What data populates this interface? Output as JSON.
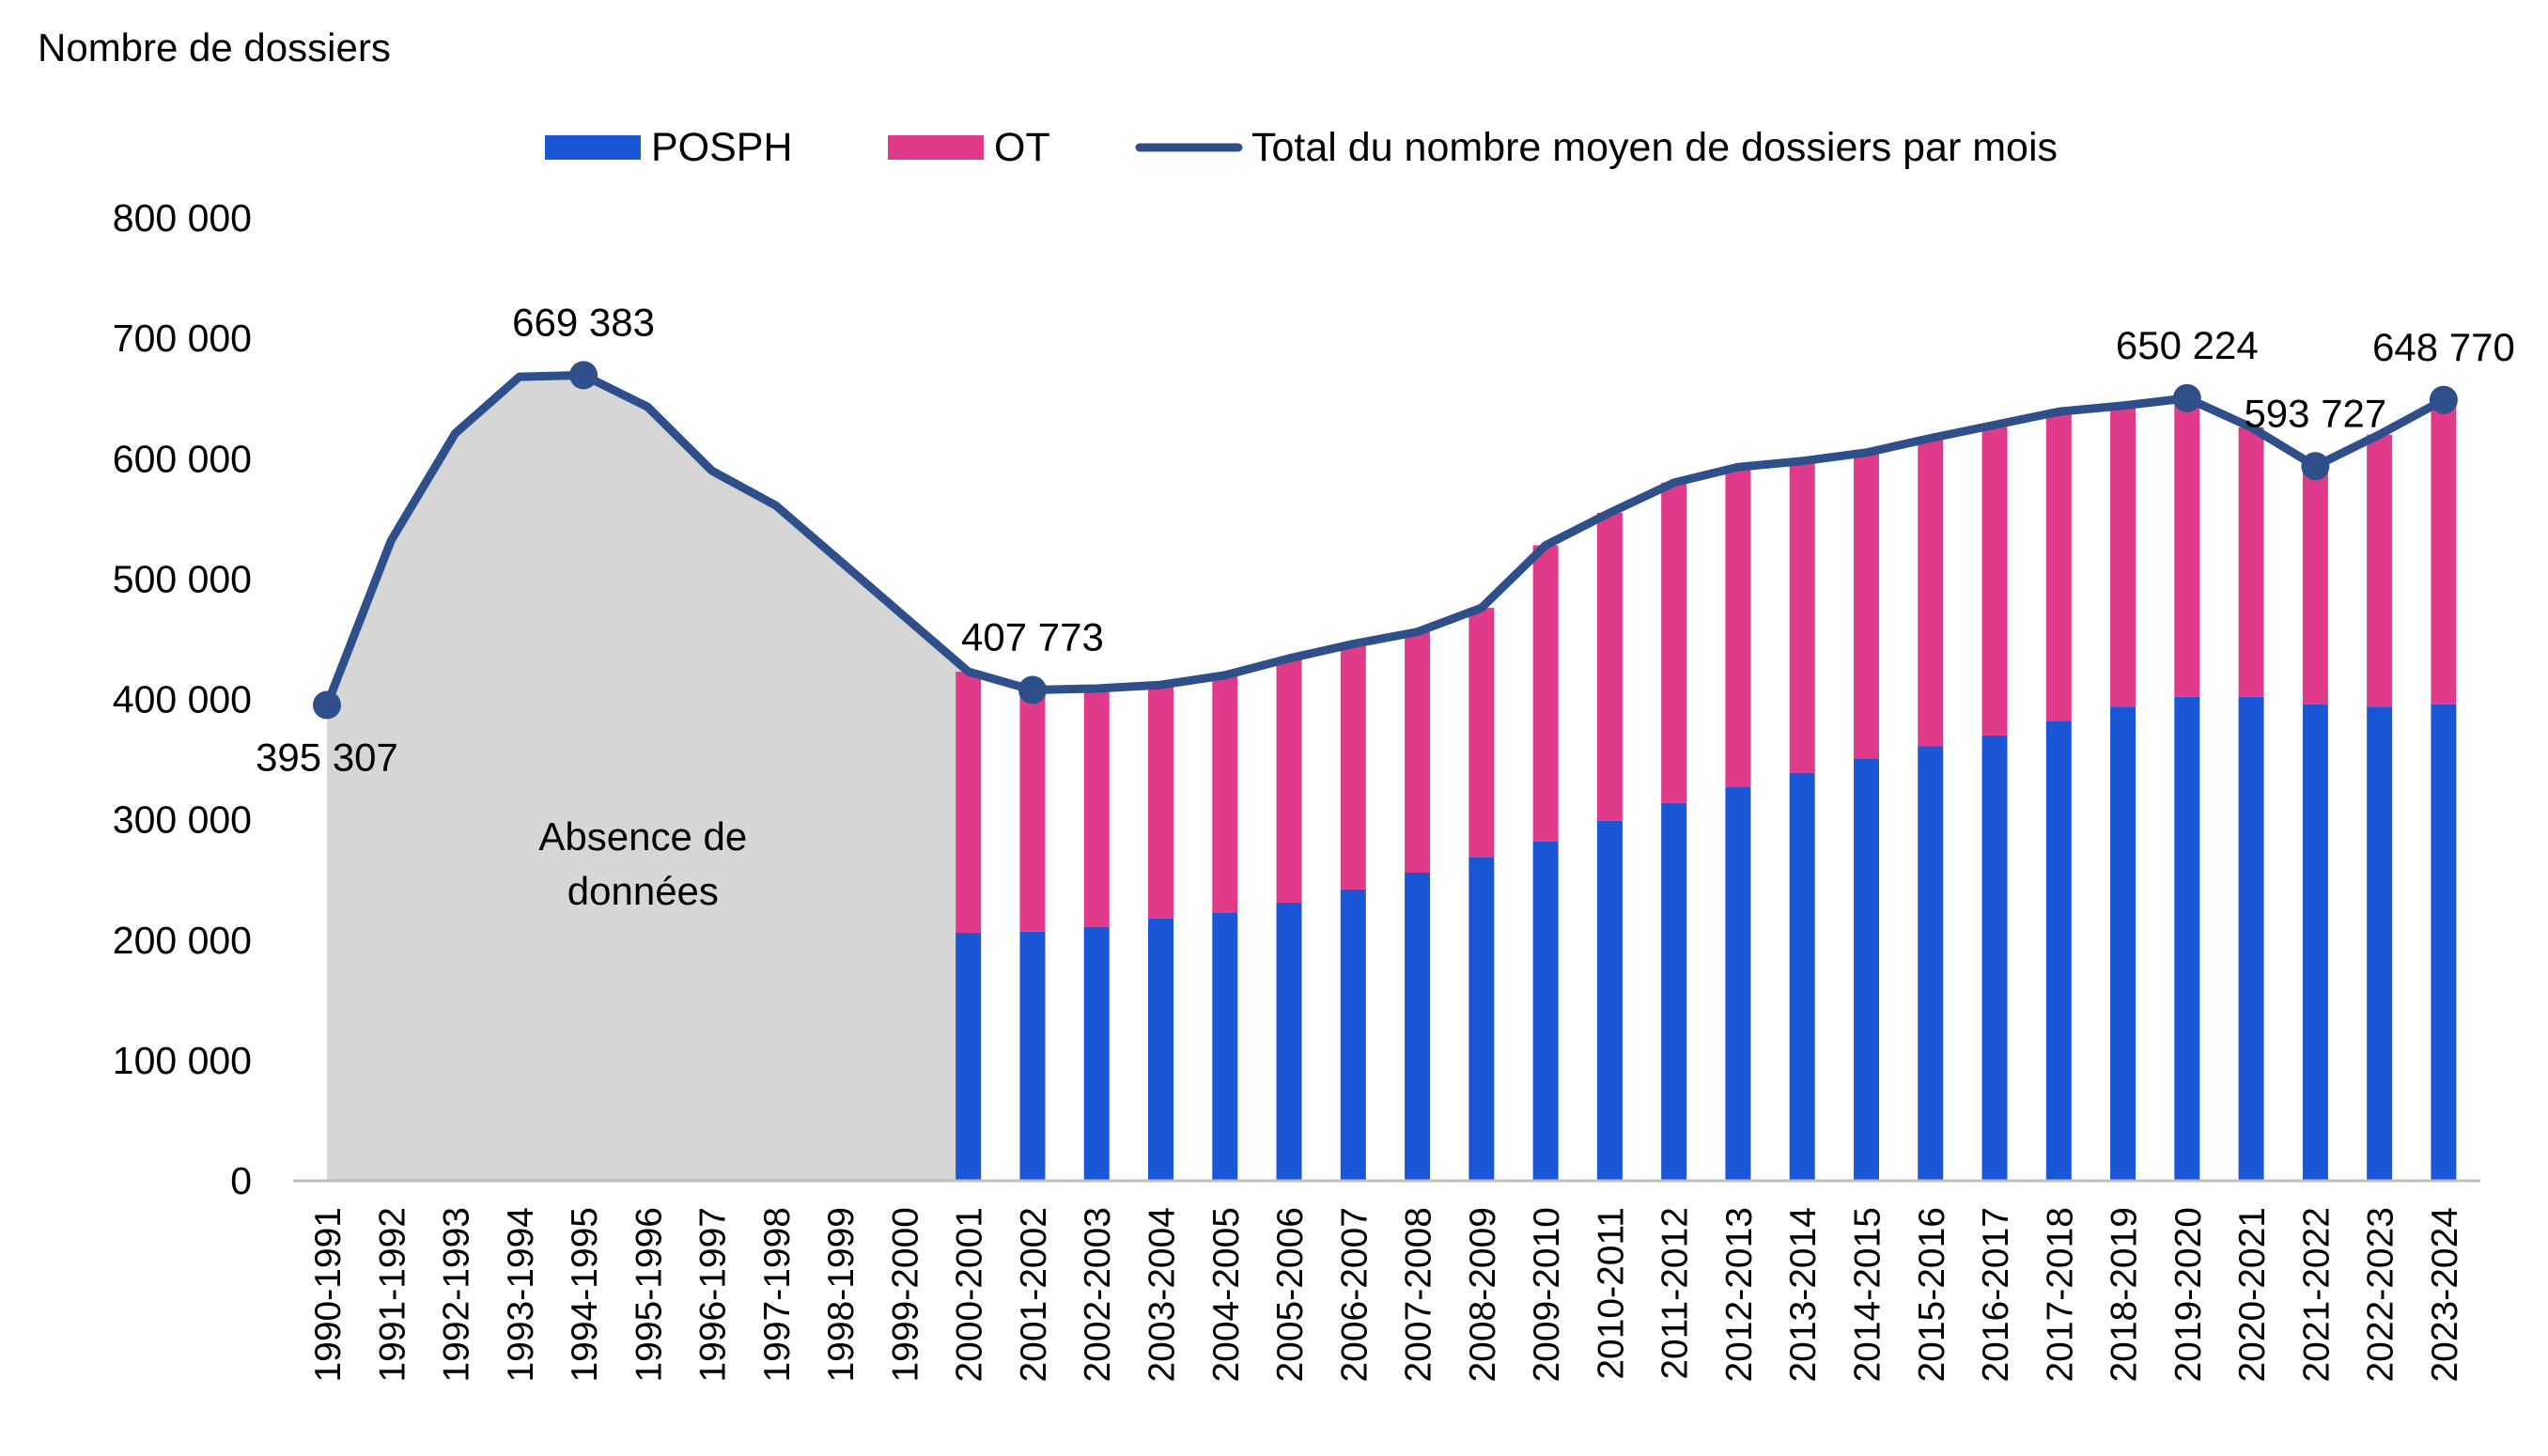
{
  "chart_data": {
    "type": "bar",
    "ylabel": "Nombre de dossiers",
    "ylim": [
      0,
      800000
    ],
    "yticks": [
      "0",
      "100 000",
      "200 000",
      "300 000",
      "400 000",
      "500 000",
      "600 000",
      "700 000",
      "800 000"
    ],
    "categories": [
      "1990-1991",
      "1991-1992",
      "1992-1993",
      "1993-1994",
      "1994-1995",
      "1995-1996",
      "1996-1997",
      "1997-1998",
      "1998-1999",
      "1999-2000",
      "2000-2001",
      "2001-2002",
      "2002-2003",
      "2003-2004",
      "2004-2005",
      "2005-2006",
      "2006-2007",
      "2007-2008",
      "2008-2009",
      "2009-2010",
      "2010-2011",
      "2011-2012",
      "2012-2013",
      "2013-2014",
      "2014-2015",
      "2015-2016",
      "2016-2017",
      "2017-2018",
      "2018-2019",
      "2019-2020",
      "2020-2021",
      "2021-2022",
      "2022-2023",
      "2023-2024"
    ],
    "legend_position": "top",
    "grid": false,
    "series": [
      {
        "name": "POSPH",
        "kind": "stacked-bar",
        "color": "#1a56d6",
        "values": [
          null,
          null,
          null,
          null,
          null,
          null,
          null,
          null,
          null,
          null,
          206000,
          207000,
          211000,
          218000,
          223000,
          231000,
          242000,
          256000,
          269000,
          282000,
          299000,
          314000,
          327000,
          339000,
          351000,
          361000,
          370000,
          382000,
          394000,
          402000,
          402000,
          396000,
          394000,
          396000
        ]
      },
      {
        "name": "OT",
        "kind": "stacked-bar",
        "color": "#e03b8b",
        "values": [
          null,
          null,
          null,
          null,
          null,
          null,
          null,
          null,
          null,
          null,
          217000,
          201000,
          198000,
          194000,
          197000,
          203000,
          204000,
          200000,
          207000,
          246000,
          256000,
          266000,
          266000,
          259000,
          254000,
          256000,
          258000,
          257000,
          250000,
          248000,
          224000,
          198000,
          226000,
          253000
        ]
      },
      {
        "name": "Total du nombre moyen de dossiers par mois",
        "kind": "line",
        "color": "#2f4f8a",
        "values": [
          395307,
          532000,
          621000,
          668000,
          669383,
          643000,
          590000,
          561000,
          515000,
          469000,
          423000,
          407773,
          409000,
          412000,
          420000,
          434000,
          446000,
          456000,
          476000,
          528000,
          555000,
          580000,
          593000,
          598000,
          605000,
          617000,
          628000,
          639000,
          644000,
          650224,
          626000,
          593727,
          620000,
          648770
        ]
      }
    ],
    "point_labels": [
      {
        "index": 0,
        "text": "395 307",
        "pos": "below"
      },
      {
        "index": 4,
        "text": "669 383",
        "pos": "above"
      },
      {
        "index": 11,
        "text": "407 773",
        "pos": "above"
      },
      {
        "index": 29,
        "text": "650 224",
        "pos": "above"
      },
      {
        "index": 31,
        "text": "593 727",
        "pos": "above"
      },
      {
        "index": 33,
        "text": "648 770",
        "pos": "above"
      }
    ],
    "annotations": [
      {
        "text_lines": [
          "Absence de",
          "données"
        ],
        "fill": "#d6d6d6"
      }
    ]
  }
}
